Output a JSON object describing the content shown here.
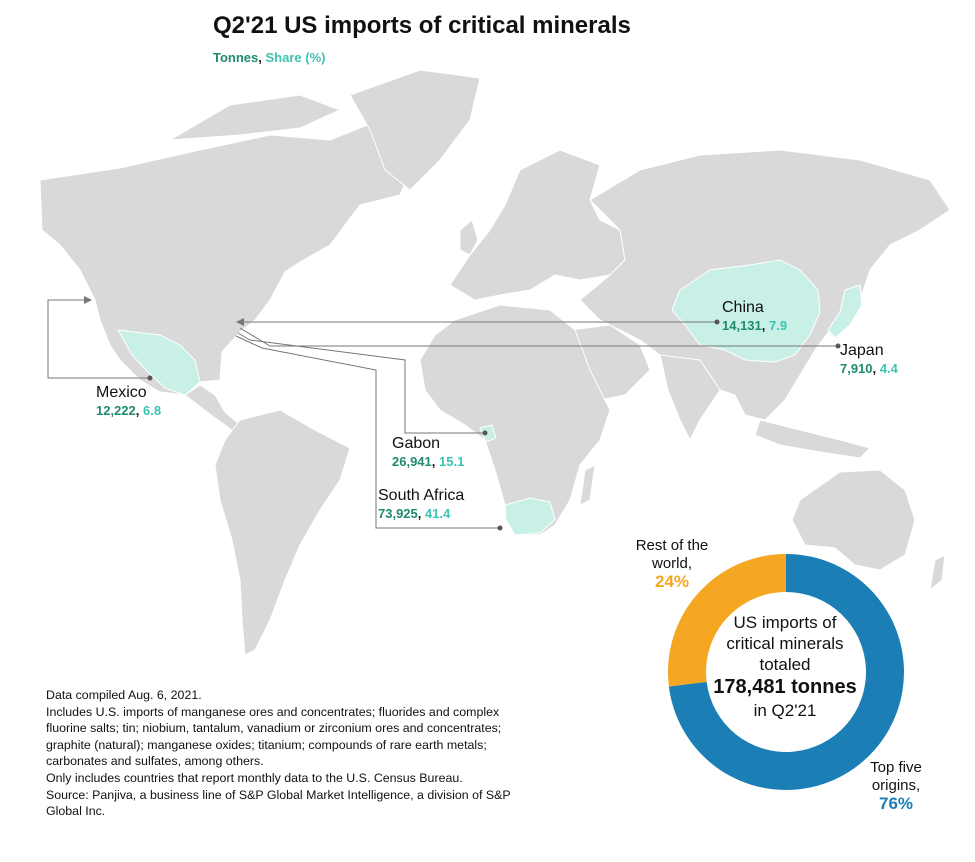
{
  "title": "Q2'21 US imports of critical minerals",
  "subtitle": {
    "tonnes_label": "Tonnes",
    "separator": ",",
    "share_label": "Share (%)"
  },
  "colors": {
    "tonnes": "#1f8a70",
    "share": "#3cc3b2",
    "highlight": "#c8f0e6",
    "land": "#d9d9d9",
    "rest": "#f5a623",
    "top": "#1b7fb5"
  },
  "origins": [
    {
      "name": "China",
      "tonnes": "14,131",
      "share": "7.9"
    },
    {
      "name": "Japan",
      "tonnes": "7,910",
      "share": "4.4"
    },
    {
      "name": "Mexico",
      "tonnes": "12,222",
      "share": "6.8"
    },
    {
      "name": "Gabon",
      "tonnes": "26,941",
      "share": "15.1"
    },
    {
      "name": "South Africa",
      "tonnes": "73,925",
      "share": "41.4"
    }
  ],
  "donut": {
    "center_lines": [
      "US imports of",
      "critical minerals",
      "totaled"
    ],
    "total": "178,481 tonnes",
    "period": "in Q2'21",
    "rest_label_lines": [
      "Rest of the",
      "world,"
    ],
    "rest_pct": "24%",
    "rest_value": 24,
    "top_label_lines": [
      "Top five",
      "origins,"
    ],
    "top_pct": "76%",
    "top_value": 76
  },
  "notes": [
    "Data compiled Aug. 6, 2021.",
    "Includes U.S. imports of manganese ores and concentrates; fluorides and complex",
    "fluorine salts; tin; niobium, tantalum, vanadium or zirconium ores and concentrates;",
    "graphite (natural); manganese oxides; titanium; compounds of rare earth metals;",
    "carbonates and sulfates, among others.",
    "Only includes countries that report monthly data to the U.S. Census Bureau.",
    "Source: Panjiva, a business line of S&P Global Market Intelligence, a division of S&P",
    "Global Inc."
  ]
}
